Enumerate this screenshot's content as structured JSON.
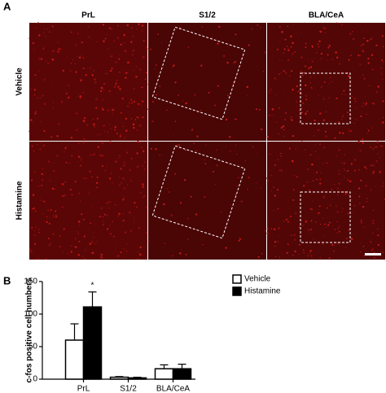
{
  "panel_a": {
    "label": "A",
    "columns": [
      "PrL",
      "S1/2",
      "BLA/CeA"
    ],
    "rows": [
      "Vehicle",
      "Histamine"
    ]
  },
  "panel_b": {
    "label": "B"
  },
  "chart_data": {
    "type": "bar",
    "y_label": "c-fos positive cell numbers",
    "categories": [
      "PrL",
      "S1/2",
      "BLA/CeA"
    ],
    "series": [
      {
        "name": "Vehicle",
        "color": "#ffffff",
        "values": [
          60,
          3,
          16
        ],
        "errors": [
          25,
          1,
          6
        ]
      },
      {
        "name": "Histamine",
        "color": "#000000",
        "values": [
          111,
          2,
          16
        ],
        "errors": [
          23,
          1,
          7
        ]
      }
    ],
    "ylim": [
      0,
      150
    ],
    "yticks": [
      0,
      50,
      100,
      150
    ],
    "annotations": [
      {
        "text": "*",
        "category": 0,
        "series": 1
      }
    ]
  }
}
